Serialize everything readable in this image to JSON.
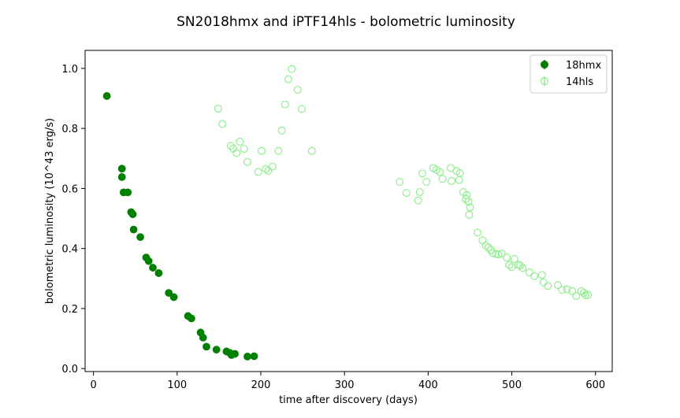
{
  "chart_data": {
    "type": "scatter",
    "title": "SN2018hmx and iPTF14hls - bolometric luminosity",
    "xlabel": "time after discovery (days)",
    "ylabel": "bolometric luminosity (10^43 erg/s)",
    "xlim": [
      -10,
      620
    ],
    "ylim": [
      -0.01,
      1.06
    ],
    "xticks": [
      0,
      100,
      200,
      300,
      400,
      500,
      600
    ],
    "yticks": [
      0.0,
      0.2,
      0.4,
      0.6,
      0.8,
      1.0
    ],
    "xtick_labels": [
      "0",
      "100",
      "200",
      "300",
      "400",
      "500",
      "600"
    ],
    "ytick_labels": [
      "0.0",
      "0.2",
      "0.4",
      "0.6",
      "0.8",
      "1.0"
    ],
    "grid": false,
    "legend_position": "top-right",
    "series": [
      {
        "name": "18hmx",
        "color": "#008000",
        "marker": "filled-circle",
        "points": [
          [
            16,
            0.908
          ],
          [
            34,
            0.666
          ],
          [
            34,
            0.638
          ],
          [
            36,
            0.587
          ],
          [
            41,
            0.587
          ],
          [
            45,
            0.521
          ],
          [
            47,
            0.514
          ],
          [
            48,
            0.463
          ],
          [
            56,
            0.438
          ],
          [
            63,
            0.37
          ],
          [
            66,
            0.358
          ],
          [
            71,
            0.336
          ],
          [
            78,
            0.318
          ],
          [
            90,
            0.252
          ],
          [
            96,
            0.238
          ],
          [
            113,
            0.175
          ],
          [
            117,
            0.167
          ],
          [
            128,
            0.12
          ],
          [
            131,
            0.103
          ],
          [
            135,
            0.073
          ],
          [
            147,
            0.063
          ],
          [
            159,
            0.057
          ],
          [
            163,
            0.052
          ],
          [
            165,
            0.045
          ],
          [
            169,
            0.049
          ],
          [
            184,
            0.04
          ],
          [
            192,
            0.041
          ]
        ]
      },
      {
        "name": "14hls",
        "color": "#90ee90",
        "marker": "open-circle",
        "points": [
          [
            149,
            0.866
          ],
          [
            154,
            0.815
          ],
          [
            164,
            0.742
          ],
          [
            167,
            0.733
          ],
          [
            171,
            0.718
          ],
          [
            175,
            0.756
          ],
          [
            180,
            0.732
          ],
          [
            184,
            0.688
          ],
          [
            197,
            0.655
          ],
          [
            201,
            0.725
          ],
          [
            206,
            0.665
          ],
          [
            209,
            0.659
          ],
          [
            214,
            0.673
          ],
          [
            221,
            0.725
          ],
          [
            225,
            0.793
          ],
          [
            229,
            0.88
          ],
          [
            233,
            0.964
          ],
          [
            237,
            0.998
          ],
          [
            244,
            0.929
          ],
          [
            249,
            0.865
          ],
          [
            261,
            0.725
          ],
          [
            366,
            0.622
          ],
          [
            374,
            0.585
          ],
          [
            388,
            0.56
          ],
          [
            390,
            0.588
          ],
          [
            393,
            0.65
          ],
          [
            398,
            0.622
          ],
          [
            406,
            0.668
          ],
          [
            410,
            0.662
          ],
          [
            414,
            0.655
          ],
          [
            417,
            0.632
          ],
          [
            427,
            0.668
          ],
          [
            428,
            0.625
          ],
          [
            434,
            0.658
          ],
          [
            437,
            0.628
          ],
          [
            438,
            0.651
          ],
          [
            442,
            0.588
          ],
          [
            445,
            0.565
          ],
          [
            446,
            0.578
          ],
          [
            448,
            0.556
          ],
          [
            449,
            0.512
          ],
          [
            450,
            0.537
          ],
          [
            459,
            0.453
          ],
          [
            465,
            0.427
          ],
          [
            469,
            0.41
          ],
          [
            472,
            0.403
          ],
          [
            475,
            0.395
          ],
          [
            477,
            0.385
          ],
          [
            481,
            0.382
          ],
          [
            484,
            0.38
          ],
          [
            488,
            0.383
          ],
          [
            494,
            0.37
          ],
          [
            497,
            0.345
          ],
          [
            500,
            0.338
          ],
          [
            503,
            0.365
          ],
          [
            508,
            0.345
          ],
          [
            510,
            0.343
          ],
          [
            513,
            0.335
          ],
          [
            521,
            0.32
          ],
          [
            527,
            0.308
          ],
          [
            536,
            0.312
          ],
          [
            538,
            0.287
          ],
          [
            543,
            0.275
          ],
          [
            555,
            0.278
          ],
          [
            560,
            0.262
          ],
          [
            566,
            0.264
          ],
          [
            572,
            0.258
          ],
          [
            577,
            0.242
          ],
          [
            583,
            0.258
          ],
          [
            586,
            0.252
          ],
          [
            588,
            0.244
          ],
          [
            591,
            0.245
          ]
        ]
      }
    ]
  }
}
